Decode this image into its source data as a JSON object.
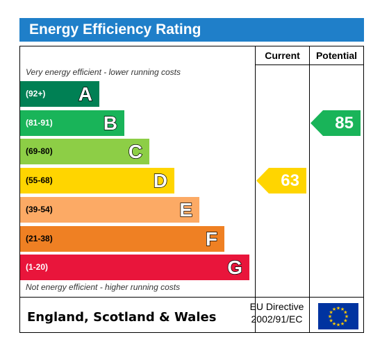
{
  "title": "Energy Efficiency Rating",
  "columns": {
    "current": "Current",
    "potential": "Potential"
  },
  "top_note": "Very energy efficient - lower running costs",
  "bottom_note": "Not energy efficient - higher running costs",
  "footer": {
    "region": "England, Scotland & Wales",
    "directive_line1": "EU Directive",
    "directive_line2": "2002/91/EC"
  },
  "chart_data": {
    "type": "bar",
    "categories": [
      "A",
      "B",
      "C",
      "D",
      "E",
      "F",
      "G"
    ],
    "ranges": [
      "(92+)",
      "(81-91)",
      "(69-80)",
      "(55-68)",
      "(39-54)",
      "(21-38)",
      "(1-20)"
    ],
    "band_colors": [
      "#008054",
      "#19b459",
      "#8dce46",
      "#ffd500",
      "#fcaa65",
      "#ef8023",
      "#e9153b"
    ],
    "current": {
      "value": 63,
      "band": "D",
      "color": "#ffd500"
    },
    "potential": {
      "value": 85,
      "band": "B",
      "color": "#19b459"
    }
  }
}
